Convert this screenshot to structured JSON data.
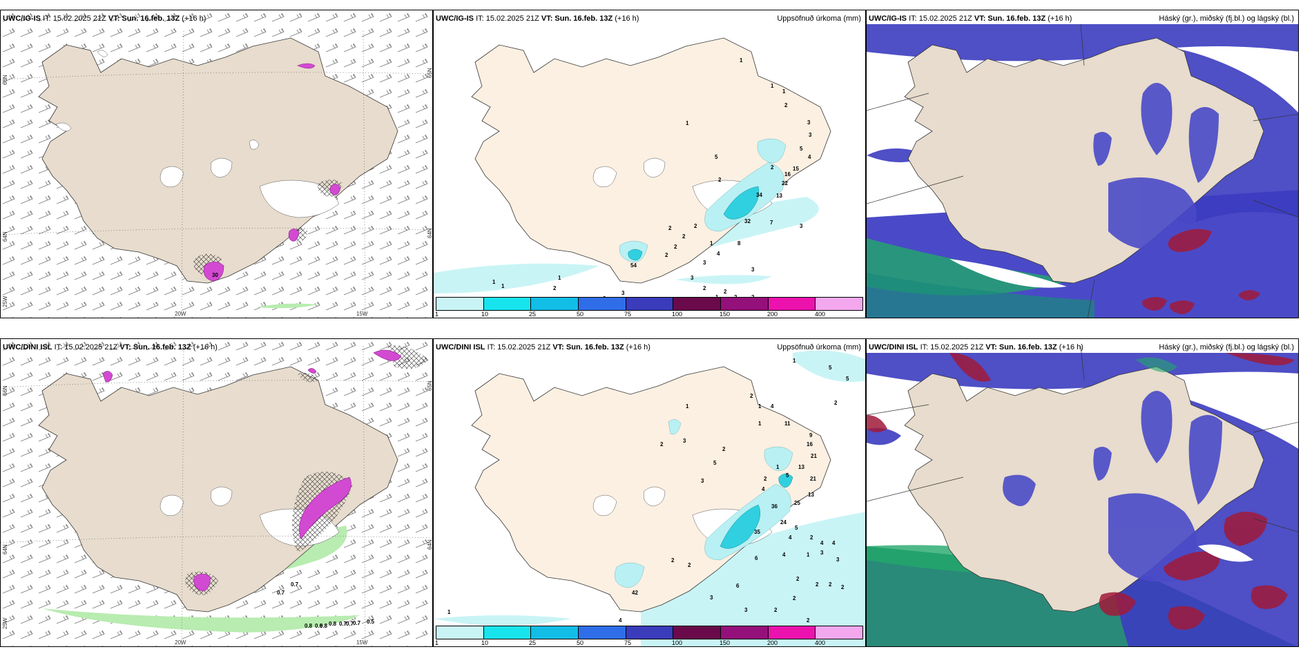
{
  "rows": [
    {
      "model": "UWC/IG-IS",
      "it": "IT: 15.02.2025 21Z",
      "vt_label": "VT:",
      "vt": "Sun. 16.feb. 13Z",
      "lead": "(+16 h)",
      "wind_lat_labels": [
        "66N",
        "64N",
        "25W"
      ],
      "wind_lat_labels_right": [
        "65N",
        "64N"
      ],
      "wind_lon_labels": [
        "20W",
        "15W"
      ],
      "precip_numbers": [
        "1",
        "1",
        "1",
        "2",
        "1",
        "3",
        "3",
        "5",
        "4",
        "2",
        "15",
        "16",
        "22",
        "13",
        "2",
        "34",
        "32",
        "2",
        "5",
        "7",
        "3",
        "1",
        "2",
        "2",
        "2",
        "2",
        "4",
        "3",
        "8",
        "3",
        "2",
        "3",
        "2",
        "2",
        "2",
        "1",
        "1",
        "1",
        "2",
        "3",
        "1",
        "54",
        "2"
      ],
      "shadow_label_1": "30"
    },
    {
      "model": "UWC/DINI ISL",
      "it": "IT: 15.02.2025 21Z",
      "vt_label": "VT:",
      "vt": "Sun. 16.feb. 13Z",
      "lead": "(+16 h)",
      "wind_lat_labels": [
        "66N",
        "64N",
        "25W"
      ],
      "wind_lat_labels_right": [
        "65N",
        "64N"
      ],
      "wind_lon_labels": [
        "20W",
        "15W"
      ],
      "contour_labels": [
        "0.7",
        "0.7",
        "0.8",
        "0.5",
        "0.7"
      ],
      "contour_labels_2": [
        "0.8",
        "0.6",
        "0.8",
        "0.7",
        "0.7"
      ],
      "precip_numbers": [
        "1",
        "5",
        "5",
        "2",
        "1",
        "4",
        "2",
        "1",
        "1",
        "11",
        "9",
        "16",
        "21",
        "13",
        "21",
        "13",
        "5",
        "1",
        "3",
        "2",
        "5",
        "2",
        "3",
        "2",
        "4",
        "36",
        "25",
        "24",
        "35",
        "5",
        "4",
        "2",
        "4",
        "4",
        "3",
        "3",
        "2",
        "6",
        "4",
        "1",
        "2",
        "2",
        "2",
        "2",
        "2",
        "6",
        "3",
        "3",
        "2",
        "2",
        "2",
        "4",
        "1",
        "42",
        "2"
      ]
    }
  ],
  "precip_title": "Uppsöfnuð úrkoma (mm)",
  "cloud_title": "Háský (gr.), miðský (fj.bl.) og lágský (bl.)",
  "colorbar": {
    "ticks": [
      "1",
      "10",
      "25",
      "50",
      "75",
      "100",
      "150",
      "200",
      "400"
    ],
    "colors": [
      "#c9f4f6",
      "#18e4ee",
      "#12bde6",
      "#2f6ee8",
      "#3a3cbc",
      "#6a0a4a",
      "#94107a",
      "#ec12ae",
      "#f3a8ee"
    ]
  },
  "colors": {
    "land": "#e7dccd",
    "land_precip": "#fcf0e2",
    "ice": "#ffffff",
    "cloud_high": "#8a8a8a",
    "cloud_mid": "#3c3cc0",
    "cloud_low": "#22a86a",
    "cloud_red": "#a01a3a",
    "precip_light": "#b8f0f4",
    "precip_cyan": "#30d0e0",
    "magenta": "#d24ad2"
  }
}
